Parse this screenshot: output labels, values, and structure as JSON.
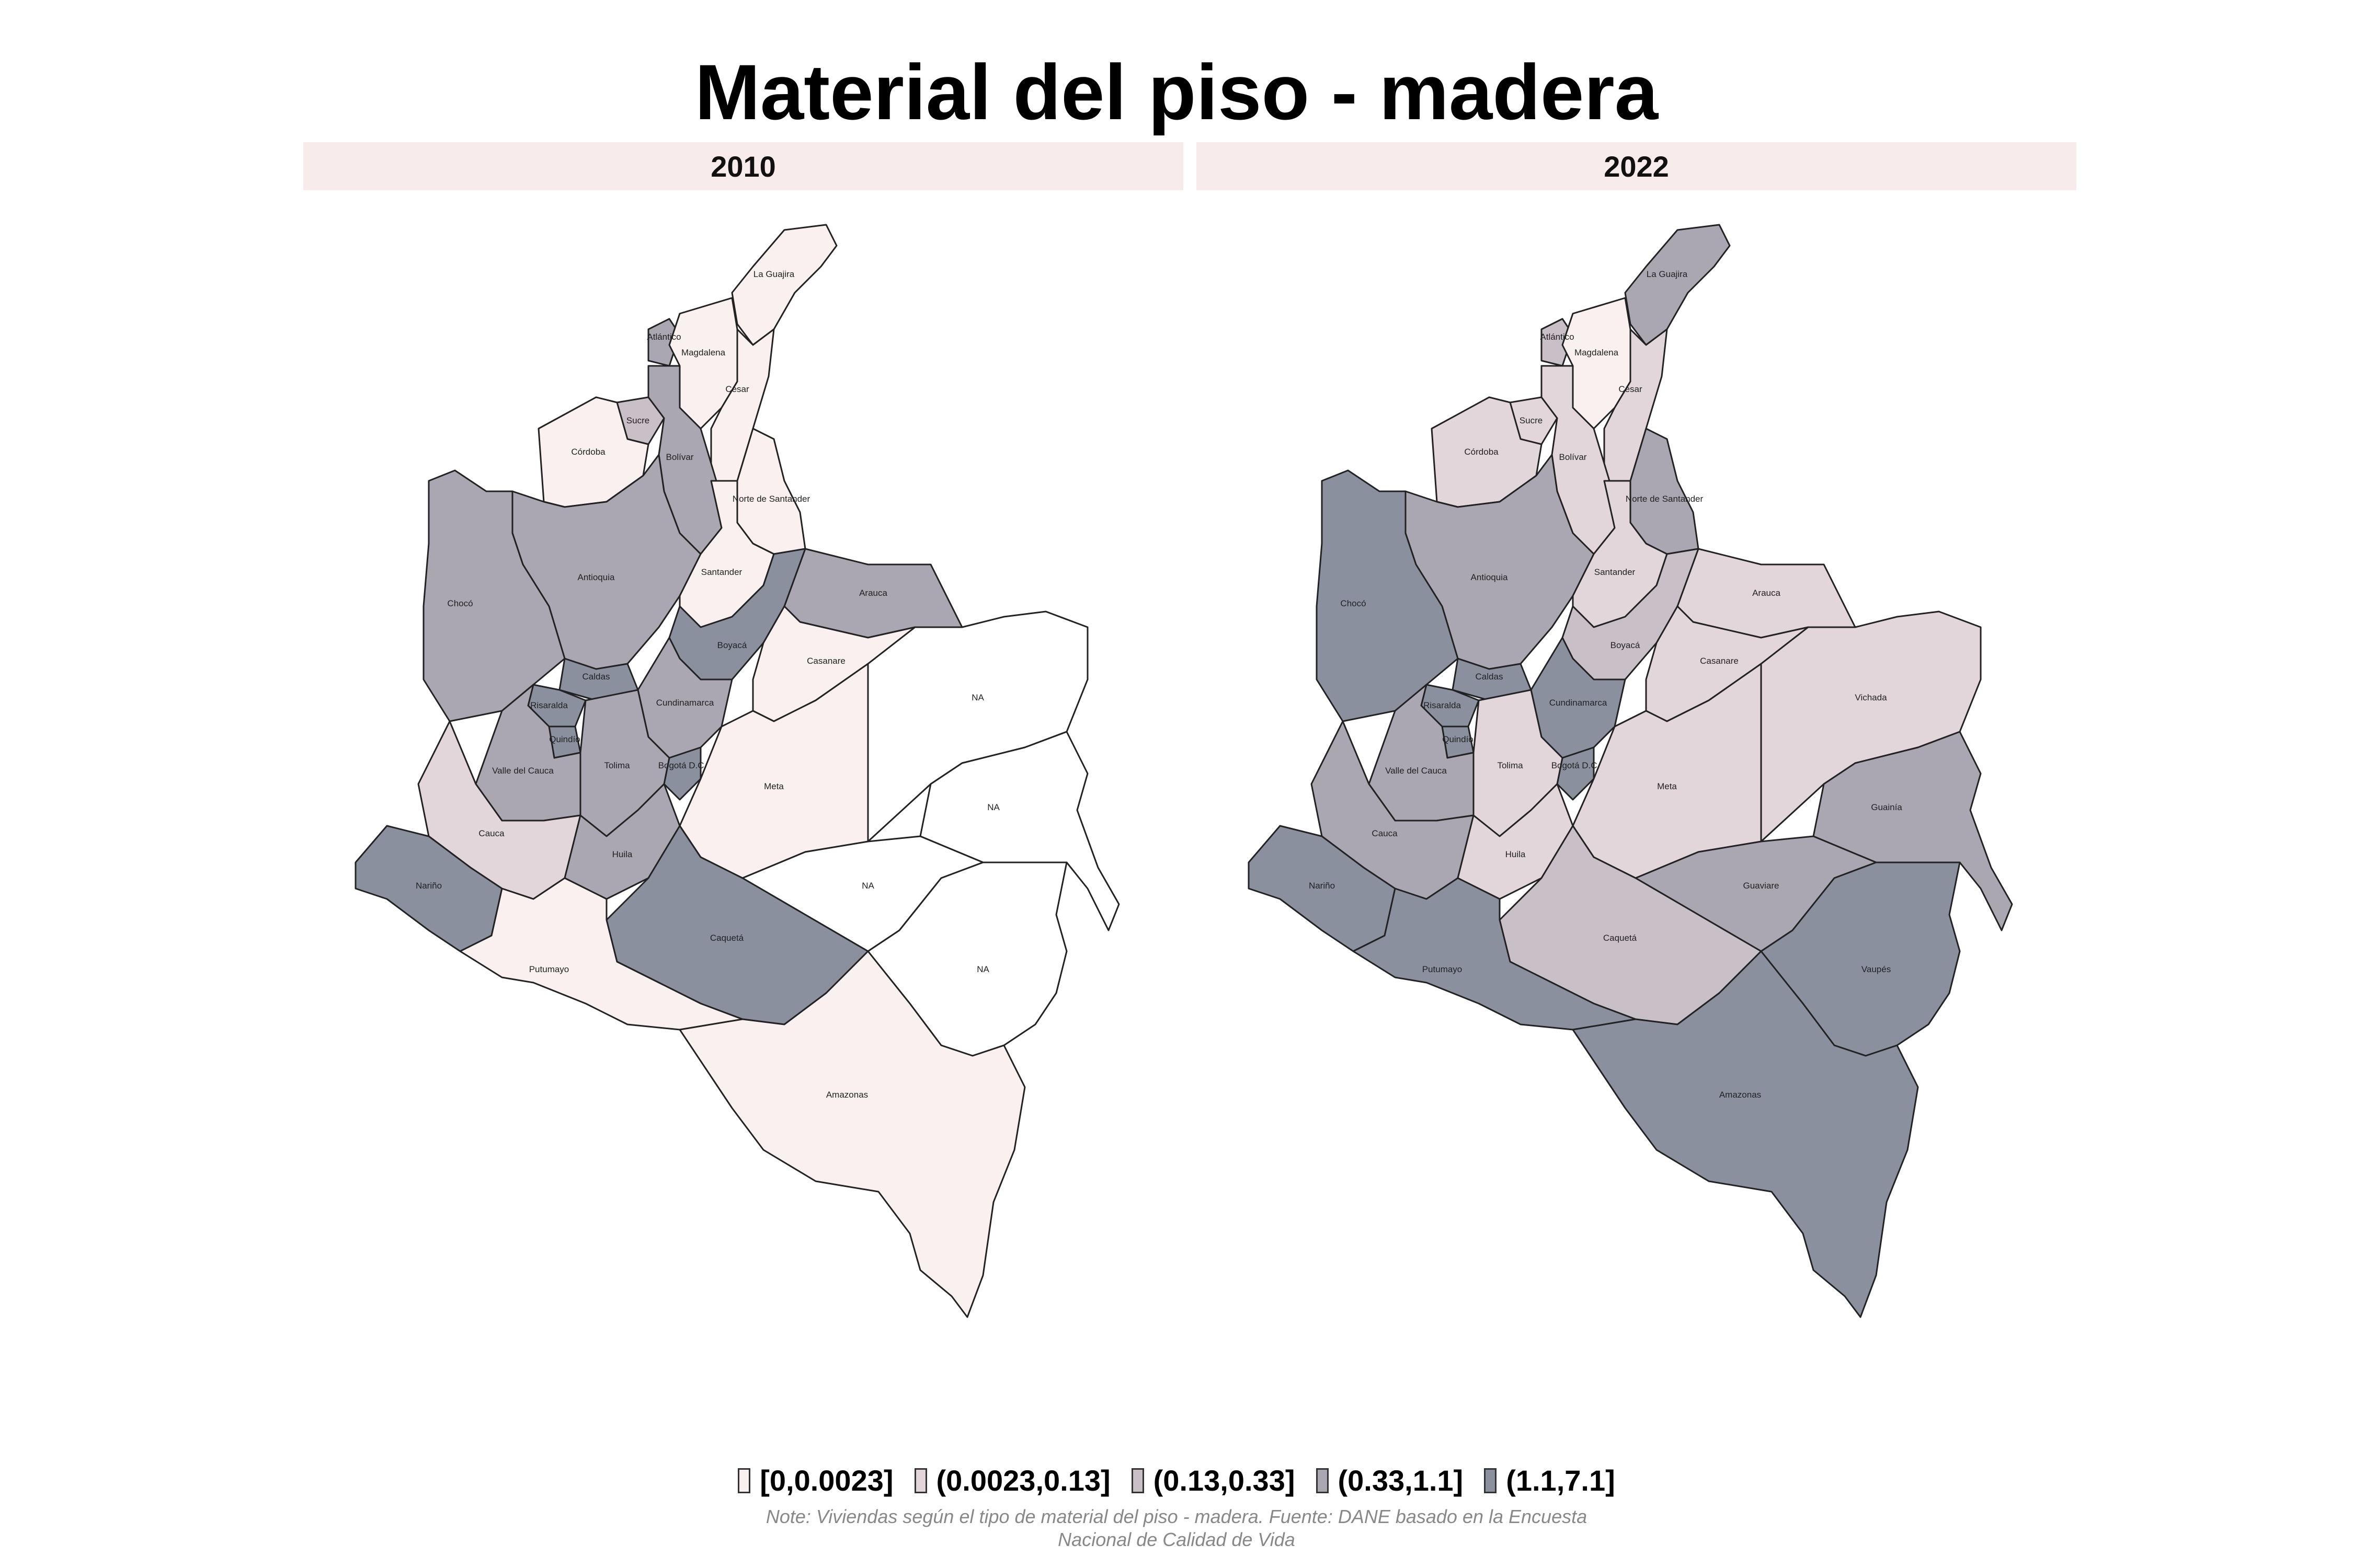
{
  "title": "Material del piso - madera",
  "facets": [
    {
      "label": "2010"
    },
    {
      "label": "2022"
    }
  ],
  "legend": {
    "items": [
      {
        "label": "[0,0.0023]",
        "color": "#faf0f0"
      },
      {
        "label": "(0.0023,0.13]",
        "color": "#e2d6db"
      },
      {
        "label": "(0.13,0.33]",
        "color": "#c9bfc7"
      },
      {
        "label": "(0.33,1.1]",
        "color": "#aaa6b2"
      },
      {
        "label": "(1.1,7.1]",
        "color": "#8a909e"
      }
    ]
  },
  "note": {
    "line1": "Note: Viviendas según el tipo de material del piso - madera. Fuente: DANE basado en la Encuesta",
    "line2": "Nacional de Calidad de Vida"
  },
  "colors": {
    "na": "#ffffff",
    "facet_strip": "#f8ebeb"
  },
  "departments": [
    {
      "name": "La Guajira",
      "bin2010": 0,
      "bin2022": 3
    },
    {
      "name": "Atlántico",
      "bin2010": 3,
      "bin2022": 2
    },
    {
      "name": "Magdalena",
      "bin2010": 0,
      "bin2022": 0
    },
    {
      "name": "Cesar",
      "bin2010": 0,
      "bin2022": 1
    },
    {
      "name": "Sucre",
      "bin2010": 2,
      "bin2022": 1
    },
    {
      "name": "Bolívar",
      "bin2010": 3,
      "bin2022": 1
    },
    {
      "name": "Córdoba",
      "bin2010": 0,
      "bin2022": 1
    },
    {
      "name": "Norte de Santander",
      "bin2010": 0,
      "bin2022": 3
    },
    {
      "name": "Antioquia",
      "bin2010": 3,
      "bin2022": 3
    },
    {
      "name": "Santander",
      "bin2010": 0,
      "bin2022": 1
    },
    {
      "name": "Arauca",
      "bin2010": 3,
      "bin2022": 1
    },
    {
      "name": "Chocó",
      "bin2010": 3,
      "bin2022": 4
    },
    {
      "name": "Caldas",
      "bin2010": 4,
      "bin2022": 4
    },
    {
      "name": "Risaralda",
      "bin2010": 4,
      "bin2022": 4
    },
    {
      "name": "Boyacá",
      "bin2010": 4,
      "bin2022": 2
    },
    {
      "name": "Casanare",
      "bin2010": 0,
      "bin2022": 1
    },
    {
      "name": "Cundinamarca",
      "bin2010": 3,
      "bin2022": 4
    },
    {
      "name": "Quindío",
      "bin2010": 4,
      "bin2022": 4
    },
    {
      "name": "Bogotá D.C.",
      "bin2010": 4,
      "bin2022": 4
    },
    {
      "name": "Tolima",
      "bin2010": 3,
      "bin2022": 1
    },
    {
      "name": "Valle del Cauca",
      "bin2010": 3,
      "bin2022": 3
    },
    {
      "name": "Meta",
      "bin2010": 0,
      "bin2022": 1
    },
    {
      "name": "Vichada",
      "bin2010": null,
      "bin2022": 1
    },
    {
      "name": "Cauca",
      "bin2010": 1,
      "bin2022": 3
    },
    {
      "name": "Huila",
      "bin2010": 3,
      "bin2022": 1
    },
    {
      "name": "Guainía",
      "bin2010": null,
      "bin2022": 3
    },
    {
      "name": "Guaviare",
      "bin2010": null,
      "bin2022": 3
    },
    {
      "name": "Nariño",
      "bin2010": 4,
      "bin2022": 4
    },
    {
      "name": "Caquetá",
      "bin2010": 4,
      "bin2022": 2
    },
    {
      "name": "Vaupés",
      "bin2010": null,
      "bin2022": 4
    },
    {
      "name": "Putumayo",
      "bin2010": 0,
      "bin2022": 4
    },
    {
      "name": "Amazonas",
      "bin2010": 0,
      "bin2022": 4
    }
  ],
  "na_label": "NA"
}
